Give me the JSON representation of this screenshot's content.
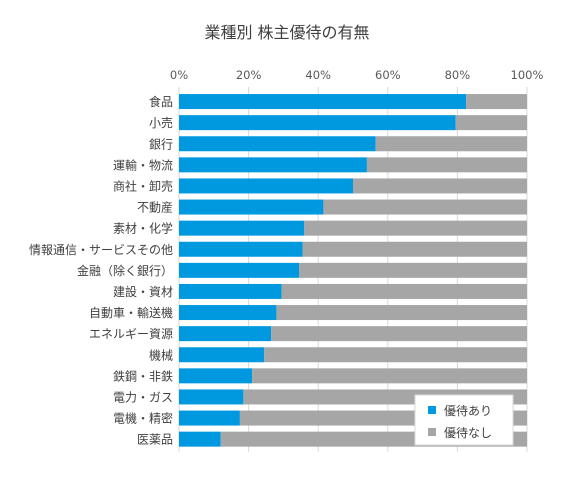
{
  "chart_data": {
    "type": "bar",
    "orientation": "horizontal",
    "stacked": "percent",
    "title": "業種別  株主優待の有無",
    "xlabel": "",
    "ylabel": "",
    "xlim": [
      0,
      100
    ],
    "x_ticks": [
      "0%",
      "20%",
      "40%",
      "60%",
      "80%",
      "100%"
    ],
    "categories": [
      "食品",
      "小売",
      "銀行",
      "運輸・物流",
      "商社・卸売",
      "不動産",
      "素材・化学",
      "情報通信・サービスその他",
      "金融（除く銀行）",
      "建設・資材",
      "自動車・輸送機",
      "エネルギー資源",
      "機械",
      "鉄鋼・非鉄",
      "電力・ガス",
      "電機・精密",
      "医薬品"
    ],
    "series": [
      {
        "name": "優待あり",
        "color": "#0099E0",
        "values": [
          82.5,
          79.5,
          56.5,
          54,
          50,
          41.5,
          36,
          35.5,
          34.5,
          29.5,
          28,
          26.5,
          24.5,
          21,
          18.5,
          17.5,
          12
        ]
      },
      {
        "name": "優待なし",
        "color": "#A6A6A6",
        "values": [
          17.5,
          20.5,
          43.5,
          46,
          50,
          58.5,
          64,
          64.5,
          65.5,
          70.5,
          72,
          73.5,
          75.5,
          79,
          81.5,
          82.5,
          88
        ]
      }
    ],
    "legend": {
      "position": "bottom-right, inside plot",
      "items": [
        "優待あり",
        "優待なし"
      ]
    },
    "grid": {
      "vertical": true,
      "color": "#D9D9D9"
    }
  }
}
